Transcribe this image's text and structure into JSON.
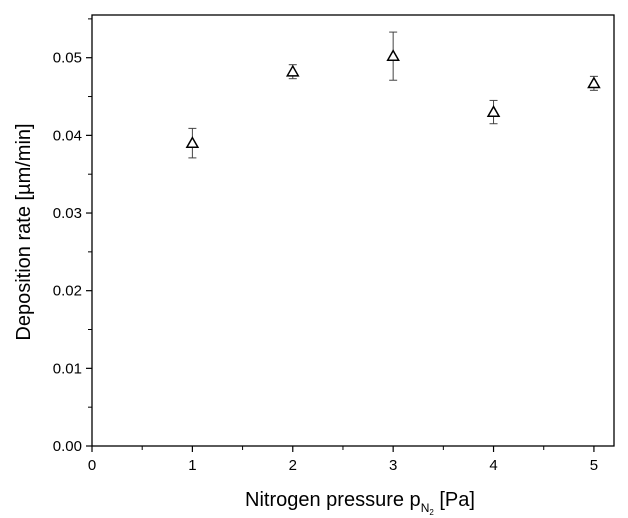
{
  "chart_data": {
    "type": "scatter",
    "title": "",
    "xlabel": {
      "main": "Nitrogen pressure p",
      "subscript": "N",
      "subscript2": "2",
      "unit": " [Pa]"
    },
    "ylabel": "Deposition rate [µm/min]",
    "xlim": [
      0,
      5.2
    ],
    "ylim": [
      0,
      0.0555
    ],
    "xticks": [
      0,
      1,
      2,
      3,
      4,
      5
    ],
    "xtick_labels": [
      "0",
      "1",
      "2",
      "3",
      "4",
      "5"
    ],
    "yticks": [
      0,
      0.01,
      0.02,
      0.03,
      0.04,
      0.05
    ],
    "ytick_labels": [
      "0.00",
      "0.01",
      "0.02",
      "0.03",
      "0.04",
      "0.05"
    ],
    "grid": false,
    "marker": "open-triangle",
    "series": [
      {
        "points": [
          {
            "x": 1,
            "y": 0.039,
            "err_low": 0.0019,
            "err_high": 0.0019
          },
          {
            "x": 2,
            "y": 0.0482,
            "err_low": 0.0009,
            "err_high": 0.0009
          },
          {
            "x": 3,
            "y": 0.0502,
            "err_low": 0.0031,
            "err_high": 0.0031
          },
          {
            "x": 4,
            "y": 0.043,
            "err_low": 0.0015,
            "err_high": 0.0015
          },
          {
            "x": 5,
            "y": 0.0467,
            "err_low": 0.0009,
            "err_high": 0.0009
          }
        ]
      }
    ]
  }
}
